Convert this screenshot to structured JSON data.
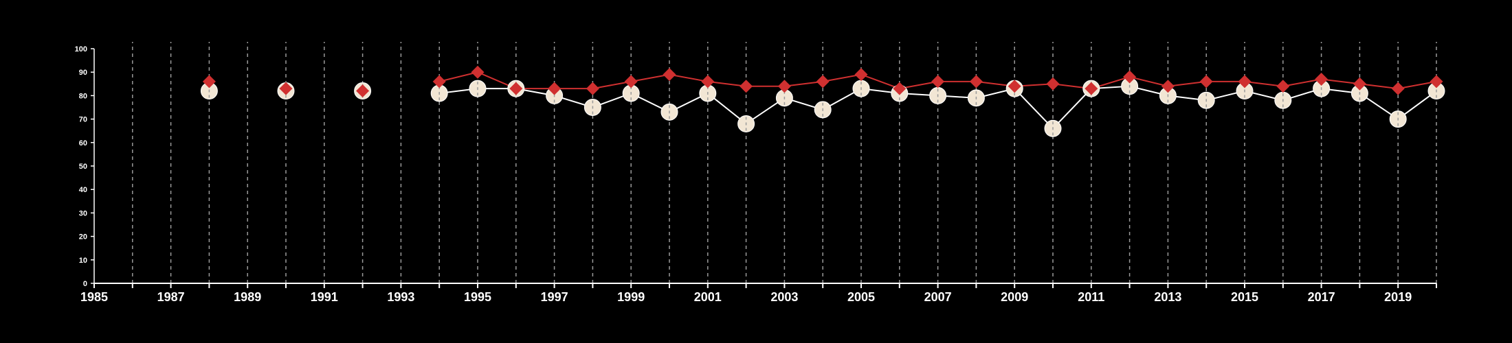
{
  "chart_data": {
    "type": "line",
    "title": "",
    "xlabel": "",
    "ylabel": "",
    "xlim": [
      1985,
      2020
    ],
    "ylim": [
      0,
      100
    ],
    "grid": "vertical dashed lines at every year",
    "legend": "none",
    "x_ticks": [
      1985,
      1987,
      1989,
      1991,
      1993,
      1995,
      1997,
      1999,
      2001,
      2003,
      2005,
      2007,
      2009,
      2011,
      2013,
      2015,
      2017,
      2019
    ],
    "y_ticks": [
      0,
      10,
      20,
      30,
      40,
      50,
      60,
      70,
      80,
      90,
      100
    ],
    "series": [
      {
        "marker": "diamond",
        "color": "#d03030",
        "x": [
          1988,
          1990,
          1992,
          1994,
          1995,
          1996,
          1997,
          1998,
          1999,
          2000,
          2001,
          2002,
          2003,
          2004,
          2005,
          2006,
          2007,
          2008,
          2009,
          2010,
          2011,
          2012,
          2013,
          2014,
          2015,
          2016,
          2017,
          2018,
          2019,
          2020
        ],
        "y": [
          86,
          83,
          82,
          86,
          90,
          83,
          83,
          83,
          86,
          89,
          86,
          84,
          84,
          86,
          89,
          83,
          86,
          86,
          84,
          85,
          83,
          88,
          84,
          86,
          86,
          84,
          87,
          85,
          83,
          86
        ]
      },
      {
        "marker": "circle",
        "color": "#f2e6d4",
        "x": [
          1988,
          1990,
          1992,
          1994,
          1995,
          1996,
          1997,
          1998,
          1999,
          2000,
          2001,
          2002,
          2003,
          2004,
          2005,
          2006,
          2007,
          2008,
          2009,
          2010,
          2011,
          2012,
          2013,
          2014,
          2015,
          2016,
          2017,
          2018,
          2019,
          2020
        ],
        "y": [
          82,
          82,
          82,
          81,
          83,
          83,
          80,
          75,
          81,
          73,
          81,
          68,
          79,
          74,
          83,
          81,
          80,
          79,
          83,
          66,
          83,
          84,
          80,
          78,
          82,
          78,
          83,
          81,
          70,
          82
        ]
      }
    ]
  }
}
